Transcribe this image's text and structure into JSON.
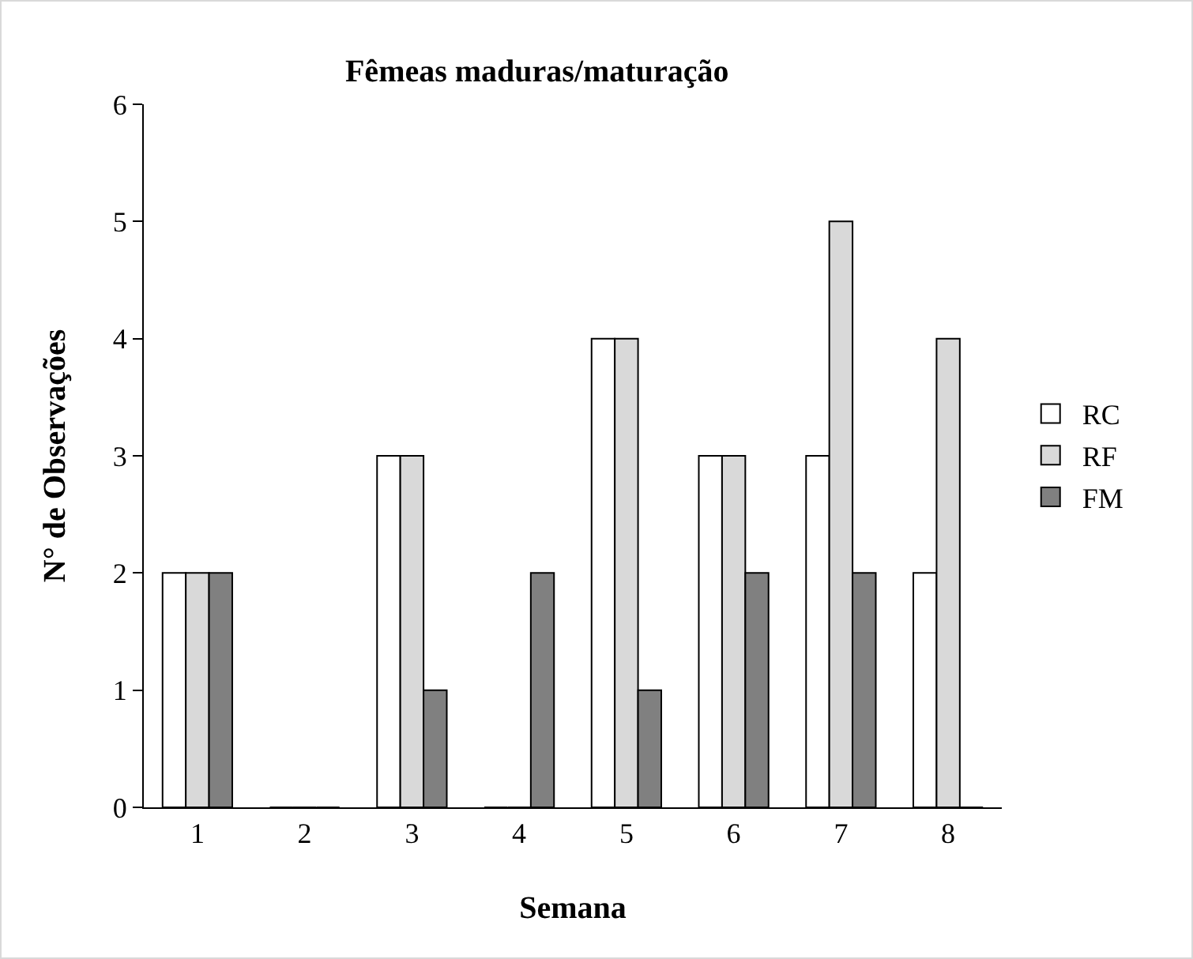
{
  "chart_data": {
    "type": "bar",
    "title": "Fêmeas maduras/maturação",
    "xlabel": "Semana",
    "ylabel": "N° de Observações",
    "categories": [
      "1",
      "2",
      "3",
      "4",
      "5",
      "6",
      "7",
      "8"
    ],
    "series": [
      {
        "name": "RC",
        "color": "#ffffff",
        "values": [
          2,
          0,
          3,
          0,
          4,
          3,
          3,
          2
        ]
      },
      {
        "name": "RF",
        "color": "#d9d9d9",
        "values": [
          2,
          0,
          3,
          0,
          4,
          3,
          5,
          4
        ]
      },
      {
        "name": "FM",
        "color": "#808080",
        "values": [
          2,
          0,
          1,
          2,
          1,
          2,
          2,
          0
        ]
      }
    ],
    "ylim": [
      0,
      6
    ],
    "yticks": [
      0,
      1,
      2,
      3,
      4,
      5,
      6
    ],
    "grid": false,
    "legend": "right"
  }
}
